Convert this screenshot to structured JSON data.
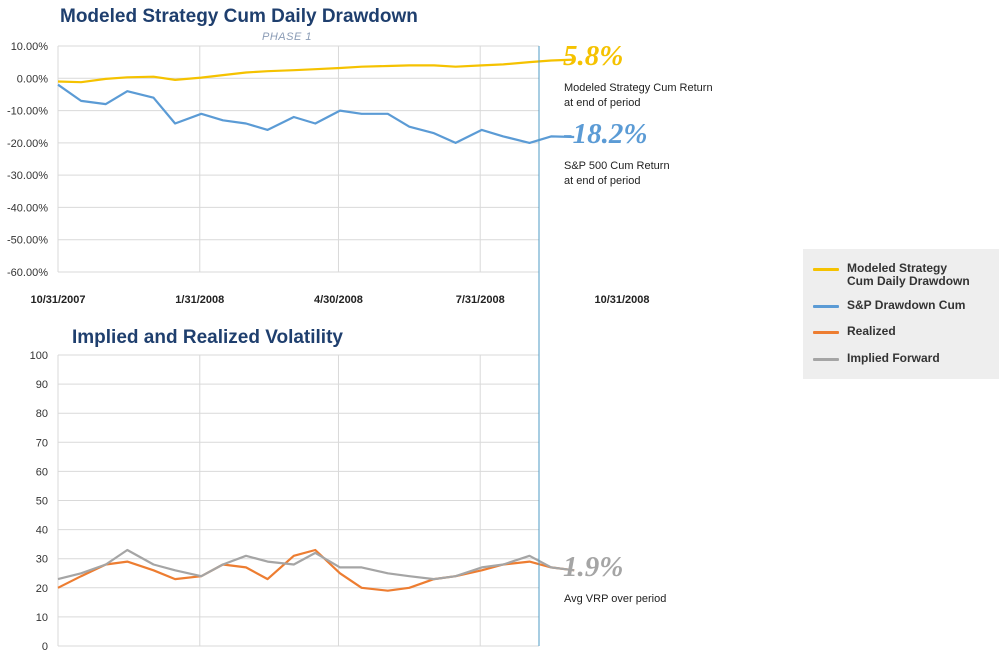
{
  "titles": {
    "top": "Modeled Strategy Cum Daily Drawdown",
    "phase": "PHASE 1",
    "bottom": "Implied and Realized Volatility"
  },
  "stats": {
    "strategy_value": "5.8%",
    "strategy_desc_1": "Modeled Strategy Cum Return",
    "strategy_desc_2": "at end of period",
    "sp_value": "-18.2%",
    "sp_desc_1": "S&P 500 Cum Return",
    "sp_desc_2": "at end of period",
    "vrp_value": "1.9%",
    "vrp_desc": "Avg VRP over period"
  },
  "legend": [
    {
      "label_1": "Modeled Strategy",
      "label_2": "Cum Daily Drawdown",
      "color": "#f5c200"
    },
    {
      "label_1": "S&P Drawdown Cum",
      "label_2": "",
      "color": "#5b9bd5"
    },
    {
      "label_1": "Realized",
      "label_2": "",
      "color": "#ed7d31"
    },
    {
      "label_1": "Implied Forward",
      "label_2": "",
      "color": "#a5a5a5"
    }
  ],
  "chart_data": [
    {
      "type": "line",
      "title": "Modeled Strategy Cum Daily Drawdown",
      "subtitle": "PHASE 1",
      "x": [
        "2007-10-31",
        "2007-11-15",
        "2007-12-01",
        "2007-12-15",
        "2008-01-01",
        "2008-01-15",
        "2008-02-01",
        "2008-02-15",
        "2008-03-01",
        "2008-03-15",
        "2008-04-01",
        "2008-04-15",
        "2008-05-01",
        "2008-05-15",
        "2008-06-01",
        "2008-06-15",
        "2008-07-01",
        "2008-07-15",
        "2008-08-01",
        "2008-08-15",
        "2008-09-01",
        "2008-09-15",
        "2008-09-30"
      ],
      "x_ticks": [
        "10/31/2007",
        "1/31/2008",
        "4/30/2008",
        "7/31/2008",
        "10/31/2008"
      ],
      "ylim": [
        -0.6,
        0.1
      ],
      "y_ticks": [
        "10.00%",
        "0.00%",
        "-10.00%",
        "-20.00%",
        "-30.00%",
        "-40.00%",
        "-50.00%",
        "-60.00%"
      ],
      "grid": true,
      "series": [
        {
          "name": "Modeled Strategy Cum Daily Drawdown",
          "color": "#f5c200",
          "values": [
            -0.01,
            -0.012,
            -0.002,
            0.003,
            0.005,
            -0.005,
            0.002,
            0.01,
            0.018,
            0.022,
            0.025,
            0.028,
            0.032,
            0.036,
            0.038,
            0.04,
            0.04,
            0.036,
            0.04,
            0.043,
            0.05,
            0.055,
            0.058
          ]
        },
        {
          "name": "S&P Drawdown Cum",
          "color": "#5b9bd5",
          "values": [
            -0.02,
            -0.07,
            -0.08,
            -0.04,
            -0.06,
            -0.14,
            -0.11,
            -0.13,
            -0.14,
            -0.16,
            -0.12,
            -0.14,
            -0.1,
            -0.11,
            -0.11,
            -0.15,
            -0.17,
            -0.2,
            -0.16,
            -0.18,
            -0.2,
            -0.18,
            -0.182
          ]
        }
      ]
    },
    {
      "type": "line",
      "title": "Implied and Realized Volatility",
      "x": [
        "2007-10-31",
        "2007-11-15",
        "2007-12-01",
        "2007-12-15",
        "2008-01-01",
        "2008-01-15",
        "2008-02-01",
        "2008-02-15",
        "2008-03-01",
        "2008-03-15",
        "2008-04-01",
        "2008-04-15",
        "2008-05-01",
        "2008-05-15",
        "2008-06-01",
        "2008-06-15",
        "2008-07-01",
        "2008-07-15",
        "2008-08-01",
        "2008-08-15",
        "2008-09-01",
        "2008-09-15",
        "2008-09-30"
      ],
      "ylim": [
        0,
        100
      ],
      "y_ticks": [
        "100",
        "90",
        "80",
        "70",
        "60",
        "50",
        "40",
        "30",
        "20",
        "10",
        "0"
      ],
      "grid": true,
      "series": [
        {
          "name": "Realized",
          "color": "#ed7d31",
          "values": [
            20,
            24,
            28,
            29,
            26,
            23,
            24,
            28,
            27,
            23,
            31,
            33,
            25,
            20,
            19,
            20,
            23,
            24,
            26,
            28,
            29,
            27,
            26
          ]
        },
        {
          "name": "Implied Forward",
          "color": "#a5a5a5",
          "values": [
            23,
            25,
            28,
            33,
            28,
            26,
            24,
            28,
            31,
            29,
            28,
            32,
            27,
            27,
            25,
            24,
            23,
            24,
            27,
            28,
            31,
            27,
            26
          ]
        }
      ]
    }
  ]
}
